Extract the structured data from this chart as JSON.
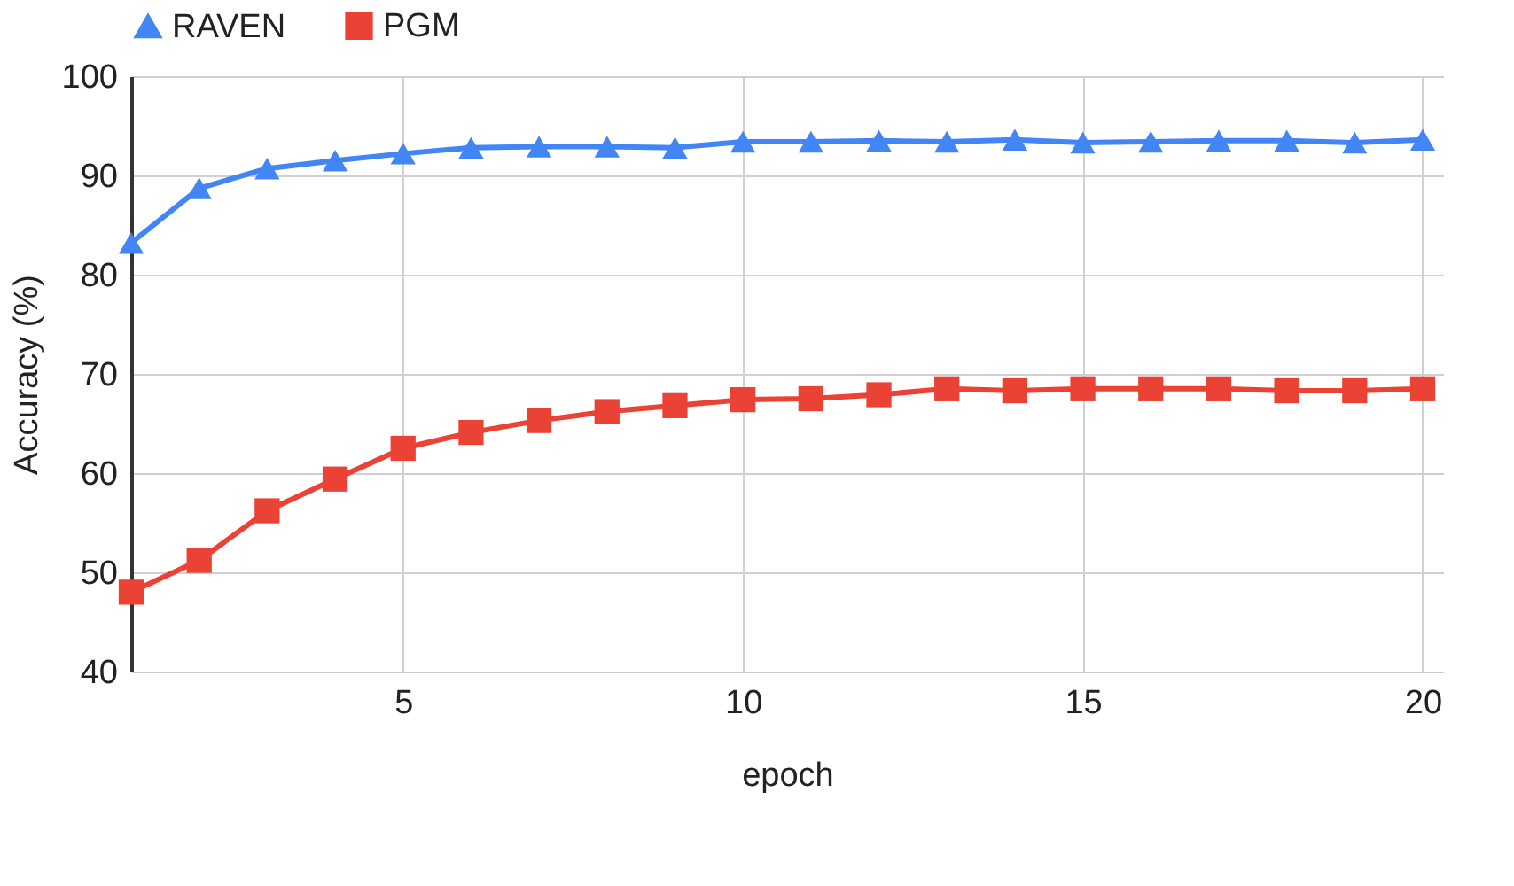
{
  "chart_data": {
    "type": "line",
    "xlabel": "epoch",
    "ylabel": "Accuracy (%)",
    "x": [
      1,
      2,
      3,
      4,
      5,
      6,
      7,
      8,
      9,
      10,
      11,
      12,
      13,
      14,
      15,
      16,
      17,
      18,
      19,
      20
    ],
    "series": [
      {
        "name": "RAVEN",
        "color": "#4285f4",
        "marker": "triangle",
        "values": [
          83.2,
          88.7,
          90.7,
          91.5,
          92.2,
          92.8,
          92.9,
          92.9,
          92.8,
          93.4,
          93.4,
          93.5,
          93.4,
          93.6,
          93.3,
          93.4,
          93.5,
          93.5,
          93.3,
          93.6
        ]
      },
      {
        "name": "PGM",
        "color": "#ea4335",
        "marker": "square",
        "values": [
          48.0,
          51.2,
          56.2,
          59.4,
          62.5,
          64.1,
          65.3,
          66.2,
          66.8,
          67.4,
          67.5,
          67.9,
          68.5,
          68.3,
          68.5,
          68.5,
          68.5,
          68.3,
          68.3,
          68.5
        ]
      }
    ],
    "xlim": [
      1,
      20.3
    ],
    "xticks": [
      5,
      10,
      15,
      20
    ],
    "ylim": [
      40,
      100
    ],
    "yticks": [
      40,
      50,
      60,
      70,
      80,
      90,
      100
    ],
    "grid": true,
    "legend": "top"
  }
}
